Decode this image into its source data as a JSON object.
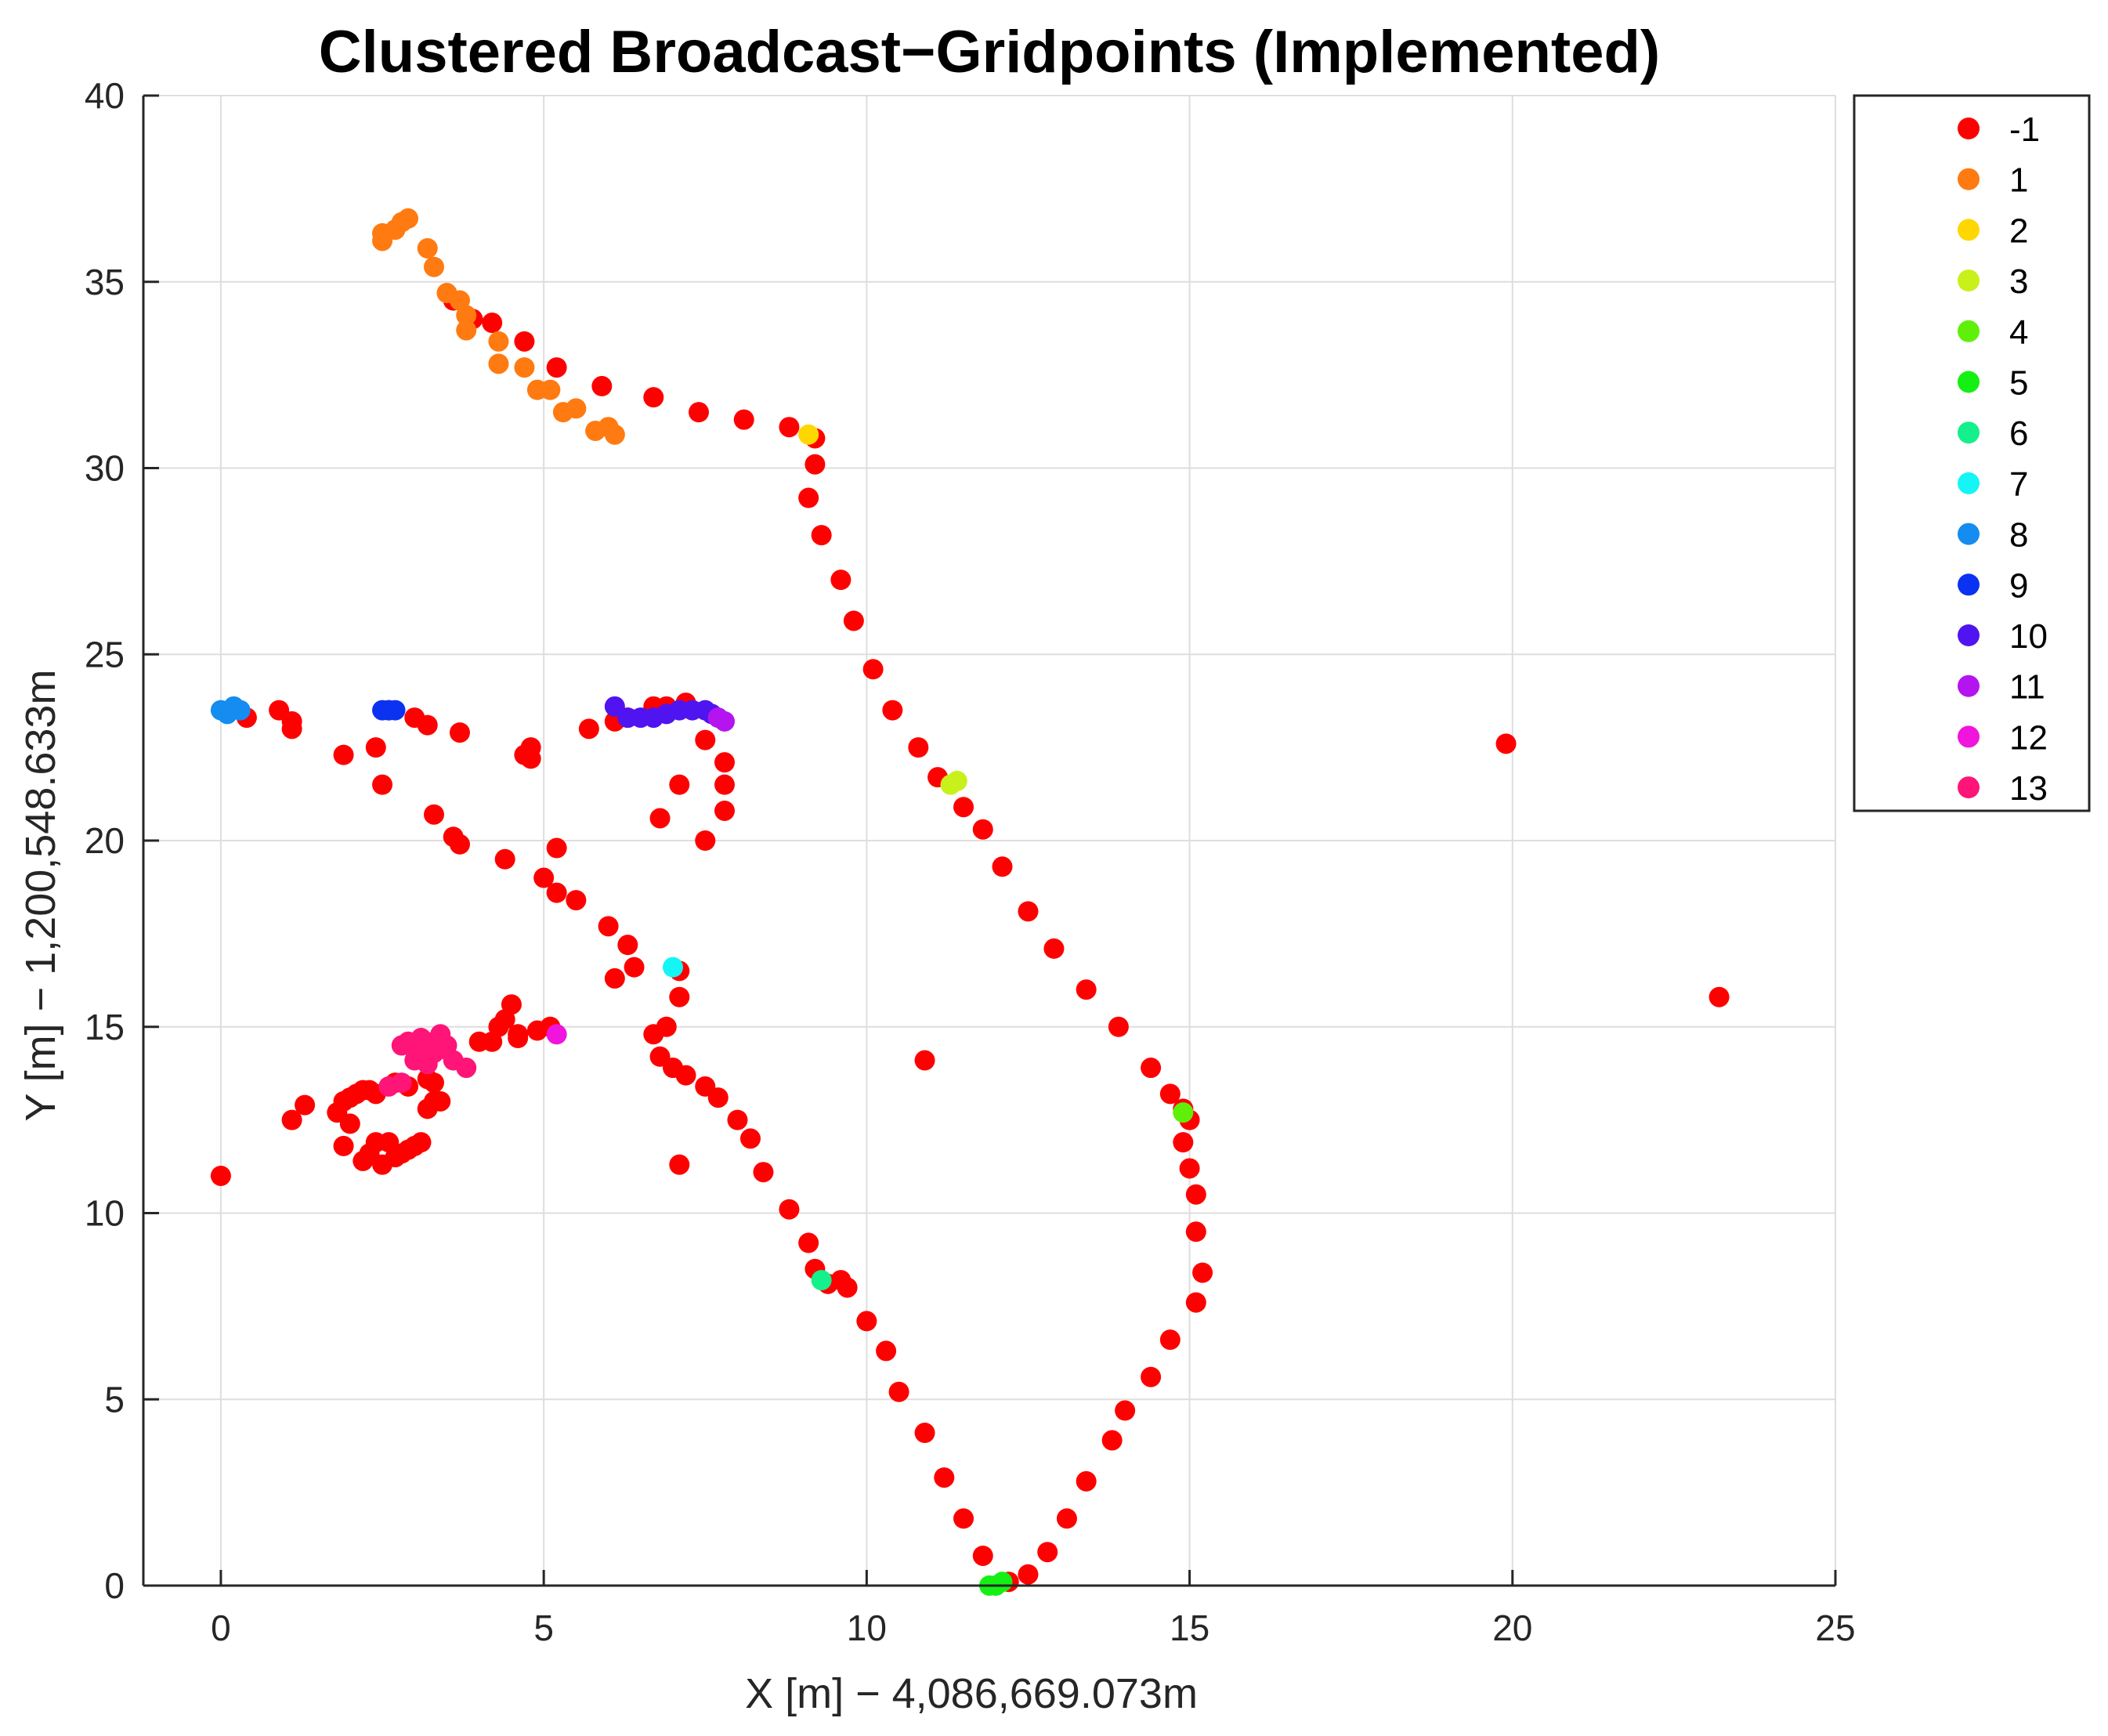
{
  "chart_data": {
    "type": "scatter",
    "title": "Clustered Broadcast−Gridpoints (Implemented)",
    "xlabel": "X [m] − 4,086,669.073m",
    "ylabel": "Y [m] − 1,200,548.633m",
    "xlim": [
      -1.2,
      25
    ],
    "ylim": [
      0,
      40
    ],
    "xticks": [
      0,
      5,
      10,
      15,
      20,
      25
    ],
    "yticks": [
      0,
      5,
      10,
      15,
      20,
      25,
      30,
      35,
      40
    ],
    "xtick_labels": [
      "0",
      "5",
      "10",
      "15",
      "20",
      "25"
    ],
    "ytick_labels": [
      "0",
      "5",
      "10",
      "15",
      "20",
      "25",
      "30",
      "35",
      "40"
    ],
    "grid": true,
    "legend_position": "outside-top-right",
    "series": [
      {
        "name": "-1",
        "color": "#ff0000",
        "points": [
          [
            2.6,
            23.5
          ],
          [
            3.0,
            23.3
          ],
          [
            3.2,
            23.1
          ],
          [
            3.7,
            22.9
          ],
          [
            5.7,
            23.0
          ],
          [
            6.1,
            23.2
          ],
          [
            6.3,
            23.3
          ],
          [
            6.7,
            23.6
          ],
          [
            6.9,
            23.6
          ],
          [
            7.2,
            23.7
          ],
          [
            0.4,
            23.3
          ],
          [
            0.9,
            23.5
          ],
          [
            1.1,
            23.2
          ],
          [
            1.1,
            23.0
          ],
          [
            1.9,
            22.3
          ],
          [
            2.4,
            22.5
          ],
          [
            2.5,
            21.5
          ],
          [
            3.3,
            20.7
          ],
          [
            3.6,
            20.1
          ],
          [
            3.7,
            19.9
          ],
          [
            4.4,
            19.5
          ],
          [
            4.8,
            22.5
          ],
          [
            4.7,
            22.3
          ],
          [
            4.8,
            22.2
          ],
          [
            5.2,
            19.8
          ],
          [
            5.0,
            19.0
          ],
          [
            5.2,
            18.6
          ],
          [
            5.5,
            18.4
          ],
          [
            6.0,
            17.7
          ],
          [
            6.3,
            17.2
          ],
          [
            6.4,
            16.6
          ],
          [
            6.1,
            16.3
          ],
          [
            7.1,
            16.5
          ],
          [
            7.1,
            15.8
          ],
          [
            7.5,
            22.7
          ],
          [
            7.8,
            22.1
          ],
          [
            7.8,
            21.5
          ],
          [
            7.8,
            20.8
          ],
          [
            7.5,
            20.0
          ],
          [
            7.1,
            21.5
          ],
          [
            6.8,
            20.6
          ],
          [
            6.7,
            14.8
          ],
          [
            6.9,
            15.0
          ],
          [
            6.8,
            14.2
          ],
          [
            7.0,
            13.9
          ],
          [
            7.2,
            13.7
          ],
          [
            7.5,
            13.4
          ],
          [
            7.7,
            13.1
          ],
          [
            8.0,
            12.5
          ],
          [
            8.2,
            12.0
          ],
          [
            8.4,
            11.1
          ],
          [
            8.8,
            10.1
          ],
          [
            9.1,
            9.2
          ],
          [
            9.2,
            8.5
          ],
          [
            9.4,
            8.1
          ],
          [
            9.6,
            8.2
          ],
          [
            9.7,
            8.0
          ],
          [
            10.0,
            7.1
          ],
          [
            10.3,
            6.3
          ],
          [
            10.5,
            5.2
          ],
          [
            10.9,
            4.1
          ],
          [
            11.2,
            2.9
          ],
          [
            11.5,
            1.8
          ],
          [
            11.8,
            0.8
          ],
          [
            12.2,
            0.1
          ],
          [
            12.5,
            0.3
          ],
          [
            12.8,
            0.9
          ],
          [
            13.1,
            1.8
          ],
          [
            13.4,
            2.8
          ],
          [
            13.8,
            3.9
          ],
          [
            14.0,
            4.7
          ],
          [
            14.4,
            5.6
          ],
          [
            14.7,
            6.6
          ],
          [
            15.1,
            7.6
          ],
          [
            15.2,
            8.4
          ],
          [
            15.1,
            9.5
          ],
          [
            15.1,
            10.5
          ],
          [
            15.0,
            11.2
          ],
          [
            14.9,
            11.9
          ],
          [
            15.0,
            12.5
          ],
          [
            14.9,
            12.8
          ],
          [
            14.7,
            13.2
          ],
          [
            14.4,
            13.9
          ],
          [
            13.9,
            15.0
          ],
          [
            13.4,
            16.0
          ],
          [
            12.9,
            17.1
          ],
          [
            12.5,
            18.1
          ],
          [
            12.1,
            19.3
          ],
          [
            11.8,
            20.3
          ],
          [
            11.5,
            20.9
          ],
          [
            11.1,
            21.7
          ],
          [
            10.8,
            22.5
          ],
          [
            10.4,
            23.5
          ],
          [
            10.1,
            24.6
          ],
          [
            9.8,
            25.9
          ],
          [
            9.6,
            27.0
          ],
          [
            9.3,
            28.2
          ],
          [
            9.1,
            29.2
          ],
          [
            9.2,
            30.1
          ],
          [
            9.2,
            30.8
          ],
          [
            8.8,
            31.1
          ],
          [
            8.1,
            31.3
          ],
          [
            7.4,
            31.5
          ],
          [
            6.7,
            31.9
          ],
          [
            5.9,
            32.2
          ],
          [
            5.2,
            32.7
          ],
          [
            4.7,
            33.4
          ],
          [
            4.2,
            33.9
          ],
          [
            3.9,
            34.0
          ],
          [
            3.6,
            34.5
          ],
          [
            4.6,
            14.7
          ],
          [
            4.2,
            14.6
          ],
          [
            4.0,
            14.6
          ],
          [
            4.3,
            15.0
          ],
          [
            4.4,
            15.2
          ],
          [
            4.5,
            15.6
          ],
          [
            4.9,
            14.9
          ],
          [
            5.1,
            15.0
          ],
          [
            4.6,
            14.8
          ],
          [
            1.1,
            12.5
          ],
          [
            1.3,
            12.9
          ],
          [
            1.8,
            12.7
          ],
          [
            1.9,
            13.0
          ],
          [
            2.0,
            13.1
          ],
          [
            2.1,
            13.2
          ],
          [
            2.2,
            13.3
          ],
          [
            2.3,
            13.3
          ],
          [
            2.4,
            13.2
          ],
          [
            2.7,
            13.5
          ],
          [
            2.9,
            13.4
          ],
          [
            3.2,
            13.6
          ],
          [
            3.3,
            13.5
          ],
          [
            3.3,
            13.0
          ],
          [
            3.4,
            13.0
          ],
          [
            3.2,
            12.8
          ],
          [
            1.9,
            11.8
          ],
          [
            2.2,
            11.4
          ],
          [
            2.3,
            11.6
          ],
          [
            2.5,
            11.3
          ],
          [
            2.7,
            11.5
          ],
          [
            2.9,
            11.7
          ],
          [
            3.0,
            11.8
          ],
          [
            3.1,
            11.9
          ],
          [
            2.6,
            11.9
          ],
          [
            2.4,
            11.9
          ],
          [
            2.8,
            11.6
          ],
          [
            2.0,
            12.4
          ],
          [
            0.0,
            11.0
          ],
          [
            7.1,
            11.3
          ],
          [
            10.9,
            14.1
          ],
          [
            19.9,
            22.6
          ],
          [
            23.2,
            15.8
          ]
        ]
      },
      {
        "name": "1",
        "color": "#ff7a10",
        "points": [
          [
            2.5,
            36.3
          ],
          [
            2.5,
            36.1
          ],
          [
            2.7,
            36.4
          ],
          [
            2.8,
            36.6
          ],
          [
            2.9,
            36.7
          ],
          [
            3.2,
            35.9
          ],
          [
            3.3,
            35.4
          ],
          [
            3.5,
            34.7
          ],
          [
            3.7,
            34.5
          ],
          [
            3.8,
            34.1
          ],
          [
            3.8,
            33.7
          ],
          [
            4.3,
            33.4
          ],
          [
            4.3,
            32.8
          ],
          [
            4.7,
            32.7
          ],
          [
            4.9,
            32.1
          ],
          [
            5.1,
            32.1
          ],
          [
            5.3,
            31.5
          ],
          [
            5.5,
            31.6
          ],
          [
            5.8,
            31.0
          ],
          [
            6.0,
            31.1
          ],
          [
            6.1,
            30.9
          ]
        ]
      },
      {
        "name": "2",
        "color": "#ffd700",
        "points": [
          [
            9.1,
            30.9
          ]
        ]
      },
      {
        "name": "3",
        "color": "#c8f01a",
        "points": [
          [
            11.3,
            21.5
          ],
          [
            11.4,
            21.6
          ]
        ]
      },
      {
        "name": "4",
        "color": "#5ff00a",
        "points": [
          [
            14.9,
            12.7
          ]
        ]
      },
      {
        "name": "5",
        "color": "#14f014",
        "points": [
          [
            11.9,
            0.0
          ],
          [
            12.0,
            0.0
          ],
          [
            12.1,
            0.1
          ]
        ]
      },
      {
        "name": "6",
        "color": "#14f08c",
        "points": [
          [
            9.3,
            8.2
          ]
        ]
      },
      {
        "name": "7",
        "color": "#14f5f5",
        "points": [
          [
            7.0,
            16.6
          ]
        ]
      },
      {
        "name": "8",
        "color": "#148cf0",
        "points": [
          [
            0.0,
            23.5
          ],
          [
            0.1,
            23.4
          ],
          [
            0.2,
            23.6
          ],
          [
            0.3,
            23.5
          ]
        ]
      },
      {
        "name": "9",
        "color": "#0a32f0",
        "points": [
          [
            2.5,
            23.5
          ],
          [
            2.6,
            23.5
          ],
          [
            2.7,
            23.5
          ]
        ]
      },
      {
        "name": "10",
        "color": "#5014f0",
        "points": [
          [
            6.1,
            23.6
          ],
          [
            6.3,
            23.3
          ],
          [
            6.5,
            23.3
          ],
          [
            6.7,
            23.3
          ],
          [
            6.9,
            23.4
          ],
          [
            7.1,
            23.5
          ],
          [
            7.3,
            23.5
          ],
          [
            7.5,
            23.5
          ],
          [
            7.6,
            23.4
          ]
        ]
      },
      {
        "name": "11",
        "color": "#b414f0",
        "points": [
          [
            7.7,
            23.3
          ],
          [
            7.8,
            23.2
          ]
        ]
      },
      {
        "name": "12",
        "color": "#f014dc",
        "points": [
          [
            5.2,
            14.8
          ]
        ]
      },
      {
        "name": "13",
        "color": "#ff1478",
        "points": [
          [
            2.8,
            14.5
          ],
          [
            2.9,
            14.6
          ],
          [
            3.0,
            14.4
          ],
          [
            3.1,
            14.7
          ],
          [
            3.2,
            14.3
          ],
          [
            3.3,
            14.6
          ],
          [
            3.4,
            14.4
          ],
          [
            3.5,
            14.5
          ],
          [
            3.6,
            14.1
          ],
          [
            3.8,
            13.9
          ],
          [
            3.0,
            14.1
          ],
          [
            3.2,
            14.0
          ],
          [
            3.4,
            14.8
          ],
          [
            2.6,
            13.4
          ],
          [
            2.8,
            13.5
          ],
          [
            3.1,
            14.2
          ],
          [
            3.3,
            14.3
          ]
        ]
      }
    ]
  }
}
